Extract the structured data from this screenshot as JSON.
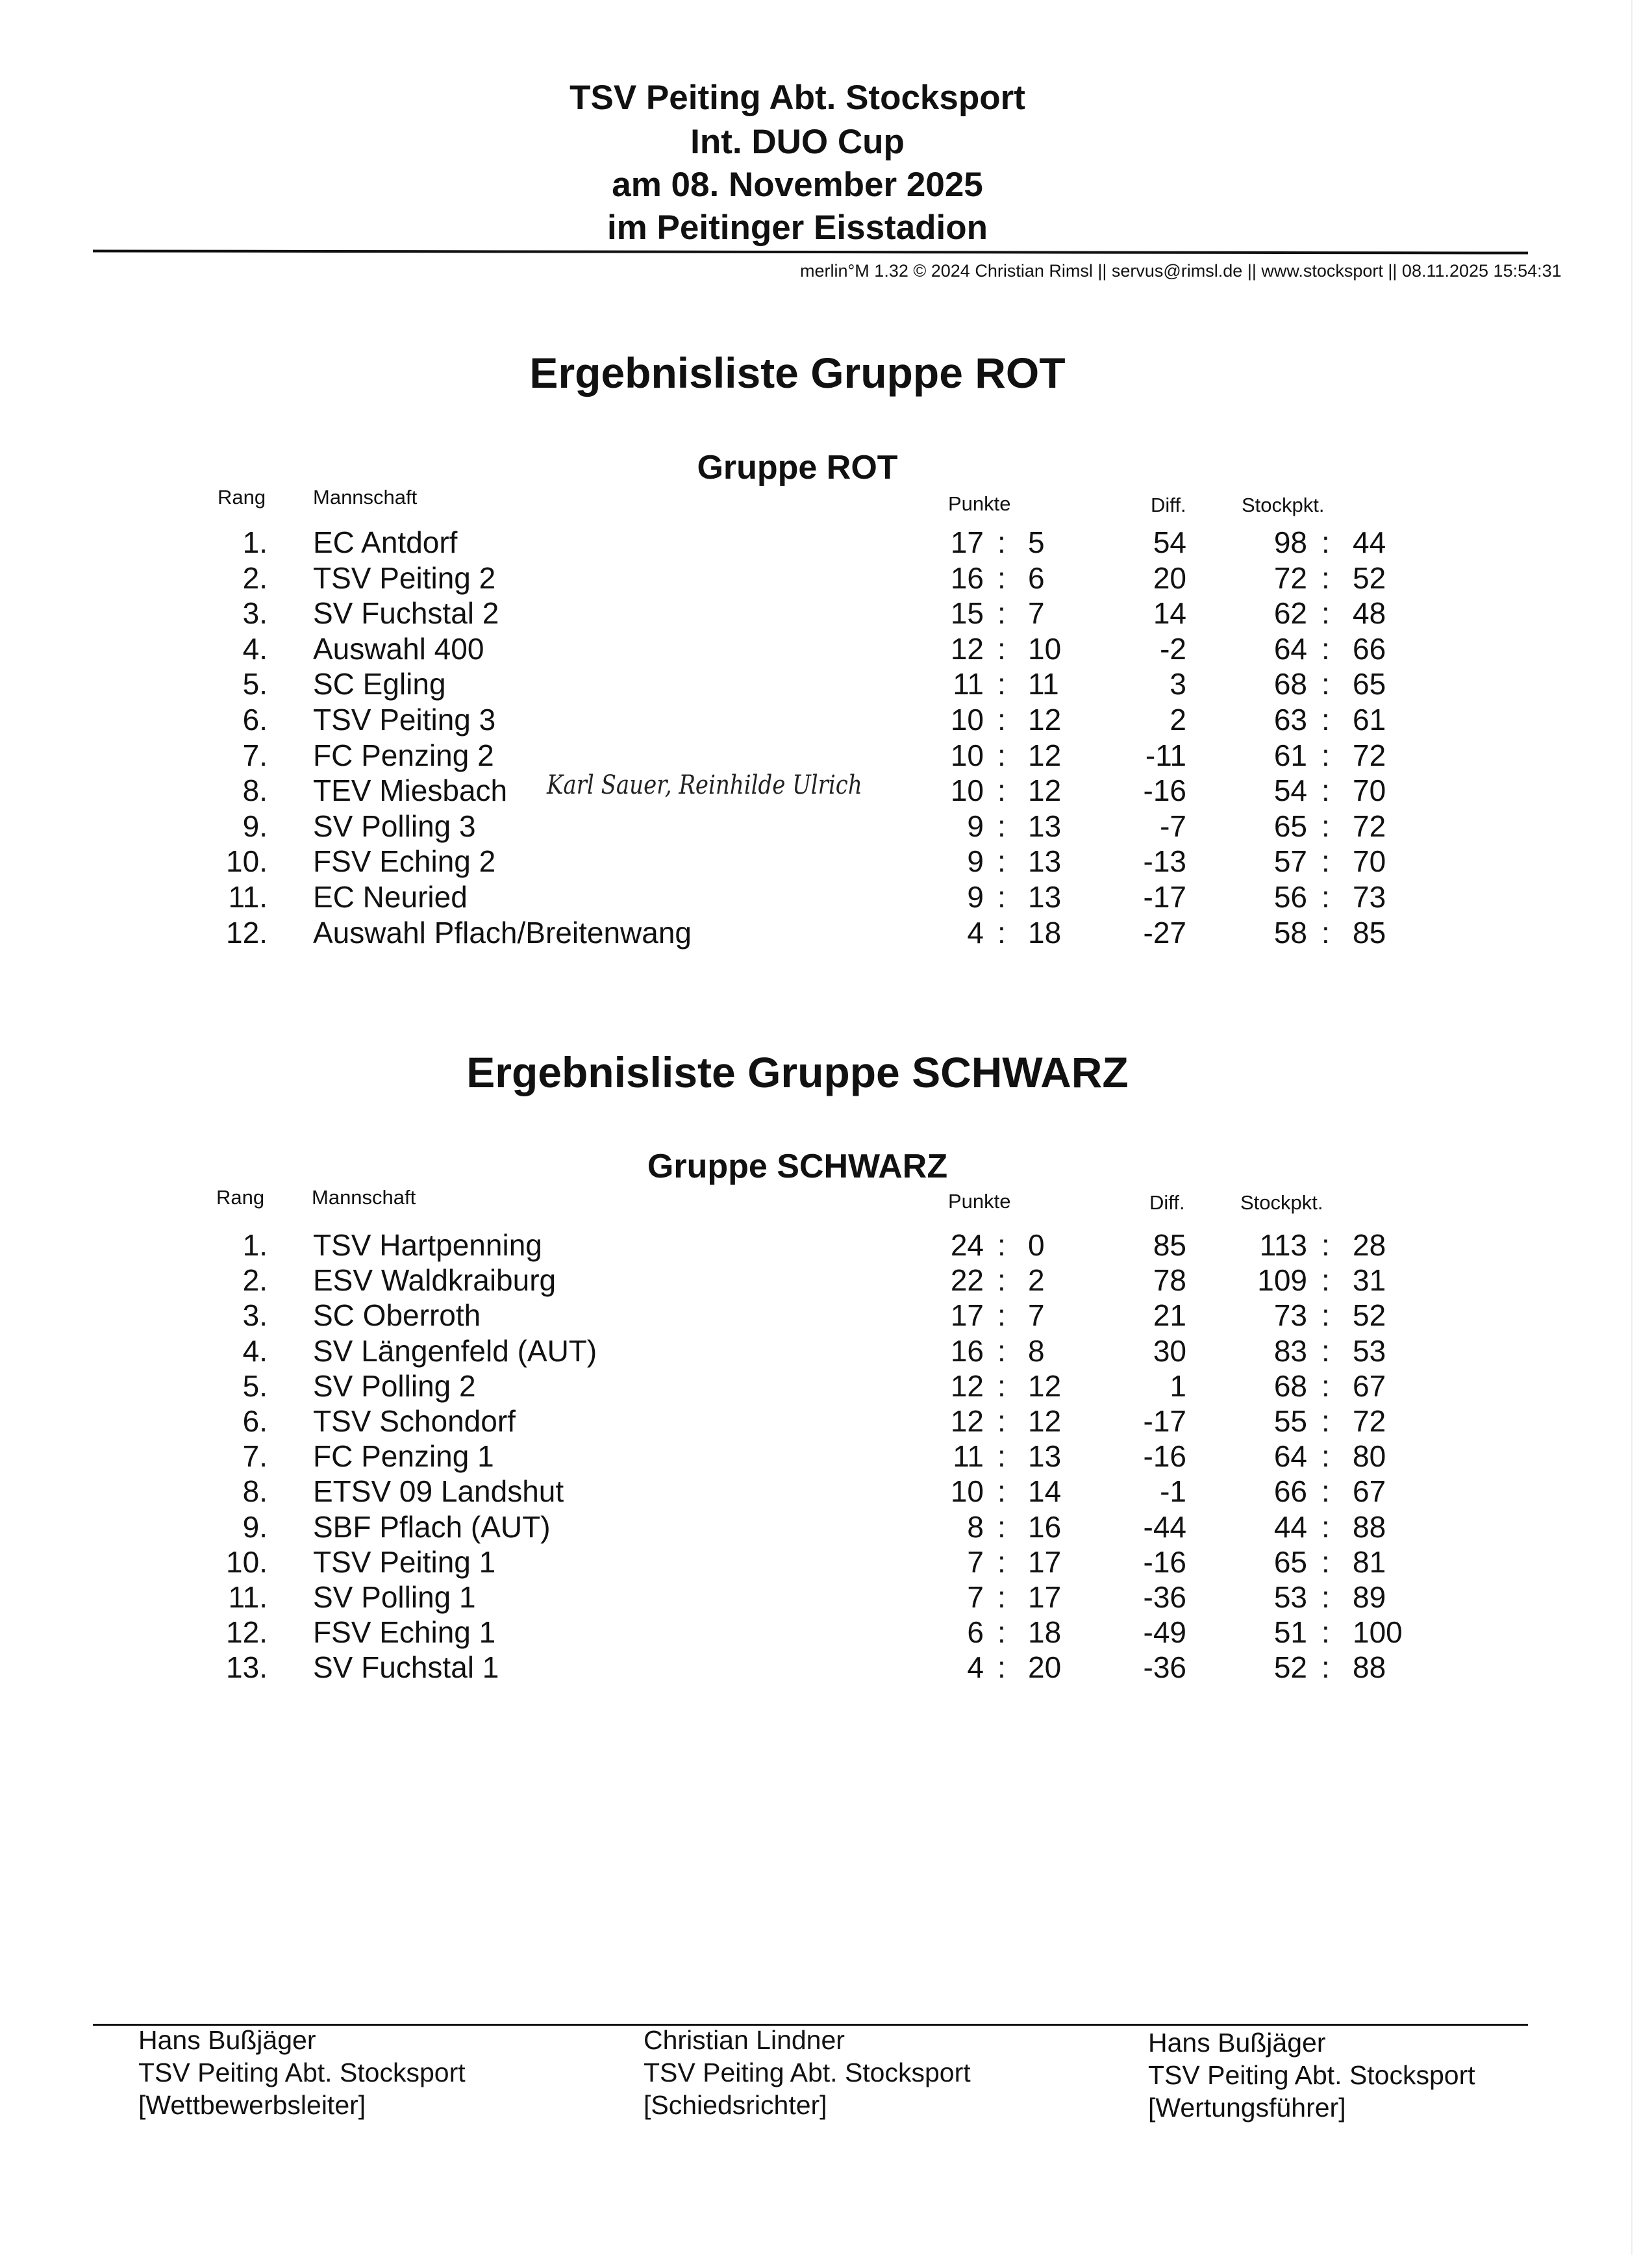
{
  "header": {
    "lines": [
      "TSV Peiting Abt. Stocksport",
      "Int. DUO Cup",
      "am 08. November 2025",
      "im Peitinger Eisstadion"
    ],
    "credit": "merlin°M 1.32 © 2024 Christian Rimsl || servus@rimsl.de || www.stocksport || 08.11.2025 15:54:31"
  },
  "columns": {
    "rang": "Rang",
    "mannschaft": "Mannschaft",
    "punkte": "Punkte",
    "diff": "Diff.",
    "stockpkt": "Stockpkt."
  },
  "rot": {
    "section_title": "Ergebnisliste  Gruppe ROT",
    "group_title": "Gruppe ROT",
    "handwritten_note": "Karl Sauer, Reinhilde Ulrich",
    "rows": [
      [
        "1.",
        "EC Antdorf",
        "17",
        "5",
        "54",
        "98",
        "44"
      ],
      [
        "2.",
        "TSV Peiting 2",
        "16",
        "6",
        "20",
        "72",
        "52"
      ],
      [
        "3.",
        "SV Fuchstal 2",
        "15",
        "7",
        "14",
        "62",
        "48"
      ],
      [
        "4.",
        "Auswahl 400",
        "12",
        "10",
        "-2",
        "64",
        "66"
      ],
      [
        "5.",
        "SC Egling",
        "11",
        "11",
        "3",
        "68",
        "65"
      ],
      [
        "6.",
        "TSV Peiting 3",
        "10",
        "12",
        "2",
        "63",
        "61"
      ],
      [
        "7.",
        "FC Penzing 2",
        "10",
        "12",
        "-11",
        "61",
        "72"
      ],
      [
        "8.",
        "TEV Miesbach",
        "10",
        "12",
        "-16",
        "54",
        "70"
      ],
      [
        "9.",
        "SV Polling 3",
        "9",
        "13",
        "-7",
        "65",
        "72"
      ],
      [
        "10.",
        "FSV Eching 2",
        "9",
        "13",
        "-13",
        "57",
        "70"
      ],
      [
        "11.",
        "EC Neuried",
        "9",
        "13",
        "-17",
        "56",
        "73"
      ],
      [
        "12.",
        "Auswahl Pflach/Breitenwang",
        "4",
        "18",
        "-27",
        "58",
        "85"
      ]
    ]
  },
  "schwarz": {
    "section_title": "Ergebnisliste  Gruppe SCHWARZ",
    "group_title": "Gruppe SCHWARZ",
    "rows": [
      [
        "1.",
        "TSV Hartpenning",
        "24",
        "0",
        "85",
        "113",
        "28"
      ],
      [
        "2.",
        "ESV Waldkraiburg",
        "22",
        "2",
        "78",
        "109",
        "31"
      ],
      [
        "3.",
        "SC Oberroth",
        "17",
        "7",
        "21",
        "73",
        "52"
      ],
      [
        "4.",
        "SV Längenfeld (AUT)",
        "16",
        "8",
        "30",
        "83",
        "53"
      ],
      [
        "5.",
        "SV Polling 2",
        "12",
        "12",
        "1",
        "68",
        "67"
      ],
      [
        "6.",
        "TSV Schondorf",
        "12",
        "12",
        "-17",
        "55",
        "72"
      ],
      [
        "7.",
        "FC Penzing 1",
        "11",
        "13",
        "-16",
        "64",
        "80"
      ],
      [
        "8.",
        "ETSV 09 Landshut",
        "10",
        "14",
        "-1",
        "66",
        "67"
      ],
      [
        "9.",
        "SBF Pflach (AUT)",
        "8",
        "16",
        "-44",
        "44",
        "88"
      ],
      [
        "10.",
        "TSV Peiting 1",
        "7",
        "17",
        "-16",
        "65",
        "81"
      ],
      [
        "11.",
        "SV Polling 1",
        "7",
        "17",
        "-36",
        "53",
        "89"
      ],
      [
        "12.",
        "FSV Eching 1",
        "6",
        "18",
        "-49",
        "51",
        "100"
      ],
      [
        "13.",
        "SV Fuchstal 1",
        "4",
        "20",
        "-36",
        "52",
        "88"
      ]
    ]
  },
  "colon": ":",
  "footer": [
    {
      "name": "Hans Bußjäger",
      "org": "TSV Peiting Abt. Stocksport",
      "role": "[Wettbewerbsleiter]"
    },
    {
      "name": "Christian Lindner",
      "org": "TSV Peiting Abt. Stocksport",
      "role": "[Schiedsrichter]"
    },
    {
      "name": "Hans Bußjäger",
      "org": "TSV Peiting Abt. Stocksport",
      "role": "[Wertungsführer]"
    }
  ]
}
